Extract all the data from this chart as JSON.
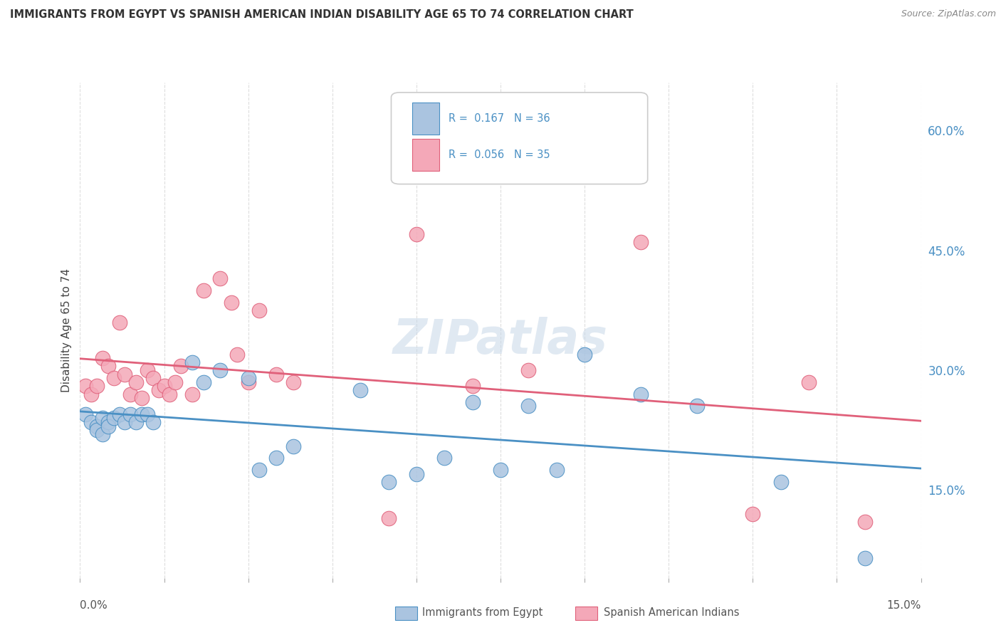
{
  "title": "IMMIGRANTS FROM EGYPT VS SPANISH AMERICAN INDIAN DISABILITY AGE 65 TO 74 CORRELATION CHART",
  "source": "Source: ZipAtlas.com",
  "ylabel": "Disability Age 65 to 74",
  "ytick_values": [
    0.15,
    0.3,
    0.45,
    0.6
  ],
  "xmin": 0.0,
  "xmax": 0.15,
  "ymin": 0.04,
  "ymax": 0.66,
  "blue_R": 0.167,
  "blue_N": 36,
  "pink_R": 0.056,
  "pink_N": 35,
  "blue_color": "#aac4e0",
  "pink_color": "#f4a8b8",
  "blue_line_color": "#4a90c4",
  "pink_line_color": "#e0607a",
  "legend_label_blue": "Immigrants from Egypt",
  "legend_label_pink": "Spanish American Indians",
  "watermark": "ZIPatlas",
  "blue_scatter_x": [
    0.001,
    0.002,
    0.003,
    0.003,
    0.004,
    0.004,
    0.005,
    0.005,
    0.006,
    0.007,
    0.008,
    0.009,
    0.01,
    0.011,
    0.012,
    0.013,
    0.02,
    0.022,
    0.025,
    0.03,
    0.032,
    0.035,
    0.038,
    0.05,
    0.055,
    0.06,
    0.065,
    0.07,
    0.075,
    0.08,
    0.085,
    0.09,
    0.1,
    0.11,
    0.125,
    0.14
  ],
  "blue_scatter_y": [
    0.245,
    0.235,
    0.23,
    0.225,
    0.24,
    0.22,
    0.235,
    0.23,
    0.24,
    0.245,
    0.235,
    0.245,
    0.235,
    0.245,
    0.245,
    0.235,
    0.31,
    0.285,
    0.3,
    0.29,
    0.175,
    0.19,
    0.205,
    0.275,
    0.16,
    0.17,
    0.19,
    0.26,
    0.175,
    0.255,
    0.175,
    0.32,
    0.27,
    0.255,
    0.16,
    0.065
  ],
  "pink_scatter_x": [
    0.001,
    0.002,
    0.003,
    0.004,
    0.005,
    0.006,
    0.007,
    0.008,
    0.009,
    0.01,
    0.011,
    0.012,
    0.013,
    0.014,
    0.015,
    0.016,
    0.017,
    0.018,
    0.02,
    0.022,
    0.025,
    0.027,
    0.028,
    0.03,
    0.032,
    0.035,
    0.038,
    0.055,
    0.06,
    0.07,
    0.08,
    0.1,
    0.12,
    0.13,
    0.14
  ],
  "pink_scatter_y": [
    0.28,
    0.27,
    0.28,
    0.315,
    0.305,
    0.29,
    0.36,
    0.295,
    0.27,
    0.285,
    0.265,
    0.3,
    0.29,
    0.275,
    0.28,
    0.27,
    0.285,
    0.305,
    0.27,
    0.4,
    0.415,
    0.385,
    0.32,
    0.285,
    0.375,
    0.295,
    0.285,
    0.115,
    0.47,
    0.28,
    0.3,
    0.46,
    0.12,
    0.285,
    0.11
  ]
}
